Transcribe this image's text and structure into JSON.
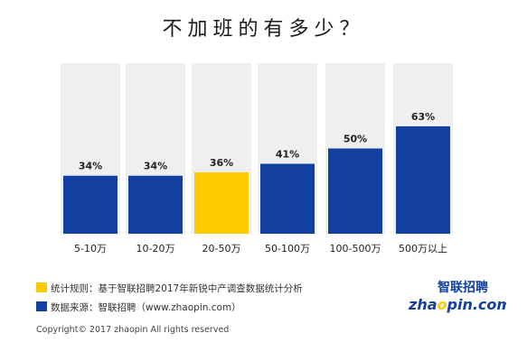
{
  "chart_data": {
    "type": "bar",
    "title": "不加班的有多少？",
    "categories": [
      "5-10万",
      "10-20万",
      "20-50万",
      "50-100万",
      "100-500万",
      "500万以上"
    ],
    "values": [
      34,
      34,
      36,
      41,
      50,
      63
    ],
    "value_labels": [
      "34%",
      "34%",
      "36%",
      "41%",
      "50%",
      "63%"
    ],
    "ylim": [
      0,
      100
    ],
    "highlight_index": 2,
    "colors": {
      "bar": "#1340a0",
      "highlight": "#fecb00",
      "background_column": "#efefef"
    }
  },
  "legend": {
    "rule": "统计规则：基于智联招聘2017年新锐中产调查数据统计分析",
    "source": "数据来源：智联招聘（www.zhaopin.com）"
  },
  "copyright": "Copyright© 2017 zhaopin All rights reserved",
  "logo": {
    "cn": "智联招聘",
    "en_prefix": "zha",
    "en_o": "o",
    "en_suffix": "pin.com"
  }
}
